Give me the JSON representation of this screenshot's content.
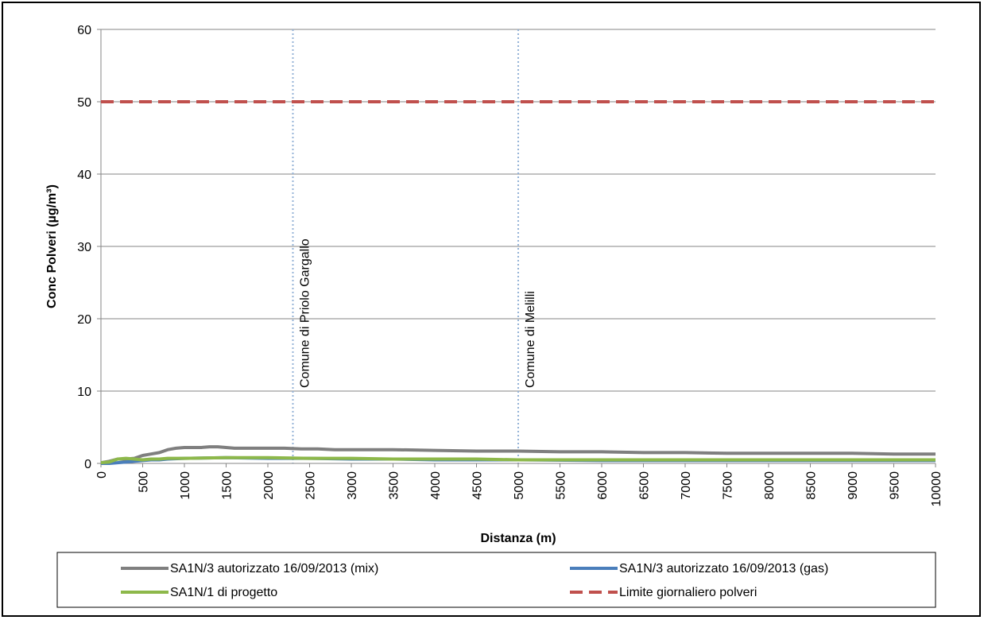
{
  "chart_data": {
    "type": "line",
    "title": "",
    "xlabel": "Distanza (m)",
    "ylabel": "Conc Polveri (µg/m³)",
    "xlim": [
      0,
      10000
    ],
    "ylim": [
      0,
      60
    ],
    "xticks": [
      0,
      500,
      1000,
      1500,
      2000,
      2500,
      3000,
      3500,
      4000,
      4500,
      5000,
      5500,
      6000,
      6500,
      7000,
      7500,
      8000,
      8500,
      9000,
      9500,
      10000
    ],
    "yticks": [
      0,
      10,
      20,
      30,
      40,
      50,
      60
    ],
    "grid": "horizontal",
    "legend_position": "bottom",
    "series": [
      {
        "name": "SA1N/3 autorizzato  16/09/2013 (mix)",
        "color": "#7f7f7f",
        "style": "solid",
        "x": [
          0,
          100,
          200,
          300,
          400,
          500,
          600,
          700,
          800,
          900,
          1000,
          1100,
          1200,
          1300,
          1400,
          1500,
          1600,
          1700,
          1800,
          1900,
          2000,
          2200,
          2400,
          2600,
          2800,
          3000,
          3500,
          4000,
          4500,
          5000,
          5500,
          6000,
          6500,
          7000,
          7500,
          8000,
          8500,
          9000,
          9500,
          10000
        ],
        "y": [
          0.1,
          0.3,
          0.6,
          0.6,
          0.7,
          1.1,
          1.3,
          1.5,
          1.9,
          2.1,
          2.2,
          2.2,
          2.2,
          2.3,
          2.3,
          2.2,
          2.1,
          2.1,
          2.1,
          2.1,
          2.1,
          2.1,
          2.0,
          2.0,
          1.9,
          1.9,
          1.9,
          1.8,
          1.7,
          1.7,
          1.6,
          1.6,
          1.5,
          1.5,
          1.4,
          1.4,
          1.4,
          1.4,
          1.3,
          1.3
        ]
      },
      {
        "name": "SA1N/3 autorizzato  16/09/2013 (gas)",
        "color": "#4a7ebb",
        "style": "solid",
        "x": [
          0,
          100,
          200,
          300,
          400,
          500,
          600,
          700,
          800,
          1000,
          1500,
          2000,
          2500,
          3000,
          3500,
          4000,
          4500,
          5000,
          6000,
          7000,
          8000,
          9000,
          10000
        ],
        "y": [
          0.0,
          0.0,
          0.1,
          0.2,
          0.3,
          0.4,
          0.5,
          0.5,
          0.6,
          0.7,
          0.8,
          0.7,
          0.7,
          0.6,
          0.6,
          0.5,
          0.5,
          0.5,
          0.4,
          0.4,
          0.4,
          0.4,
          0.4
        ]
      },
      {
        "name": "SA1N/1 di progetto",
        "color": "#8db84a",
        "style": "solid",
        "x": [
          0,
          100,
          200,
          300,
          400,
          500,
          600,
          700,
          800,
          1000,
          1500,
          2000,
          2500,
          3000,
          3500,
          4000,
          4500,
          5000,
          6000,
          7000,
          8000,
          9000,
          10000
        ],
        "y": [
          0.1,
          0.2,
          0.6,
          0.7,
          0.6,
          0.5,
          0.6,
          0.6,
          0.7,
          0.7,
          0.8,
          0.8,
          0.7,
          0.7,
          0.6,
          0.6,
          0.6,
          0.5,
          0.5,
          0.5,
          0.5,
          0.5,
          0.5
        ]
      },
      {
        "name": "Limite giornaliero polveri",
        "color": "#c0504d",
        "style": "dashed",
        "x": [
          0,
          10000
        ],
        "y": [
          50,
          50
        ]
      }
    ],
    "vertical_lines": [
      {
        "x": 2300,
        "label": "Comune di Priolo Gargallo",
        "color": "#95b3d7"
      },
      {
        "x": 5000,
        "label": "Comune di Melilli",
        "color": "#95b3d7"
      }
    ]
  }
}
